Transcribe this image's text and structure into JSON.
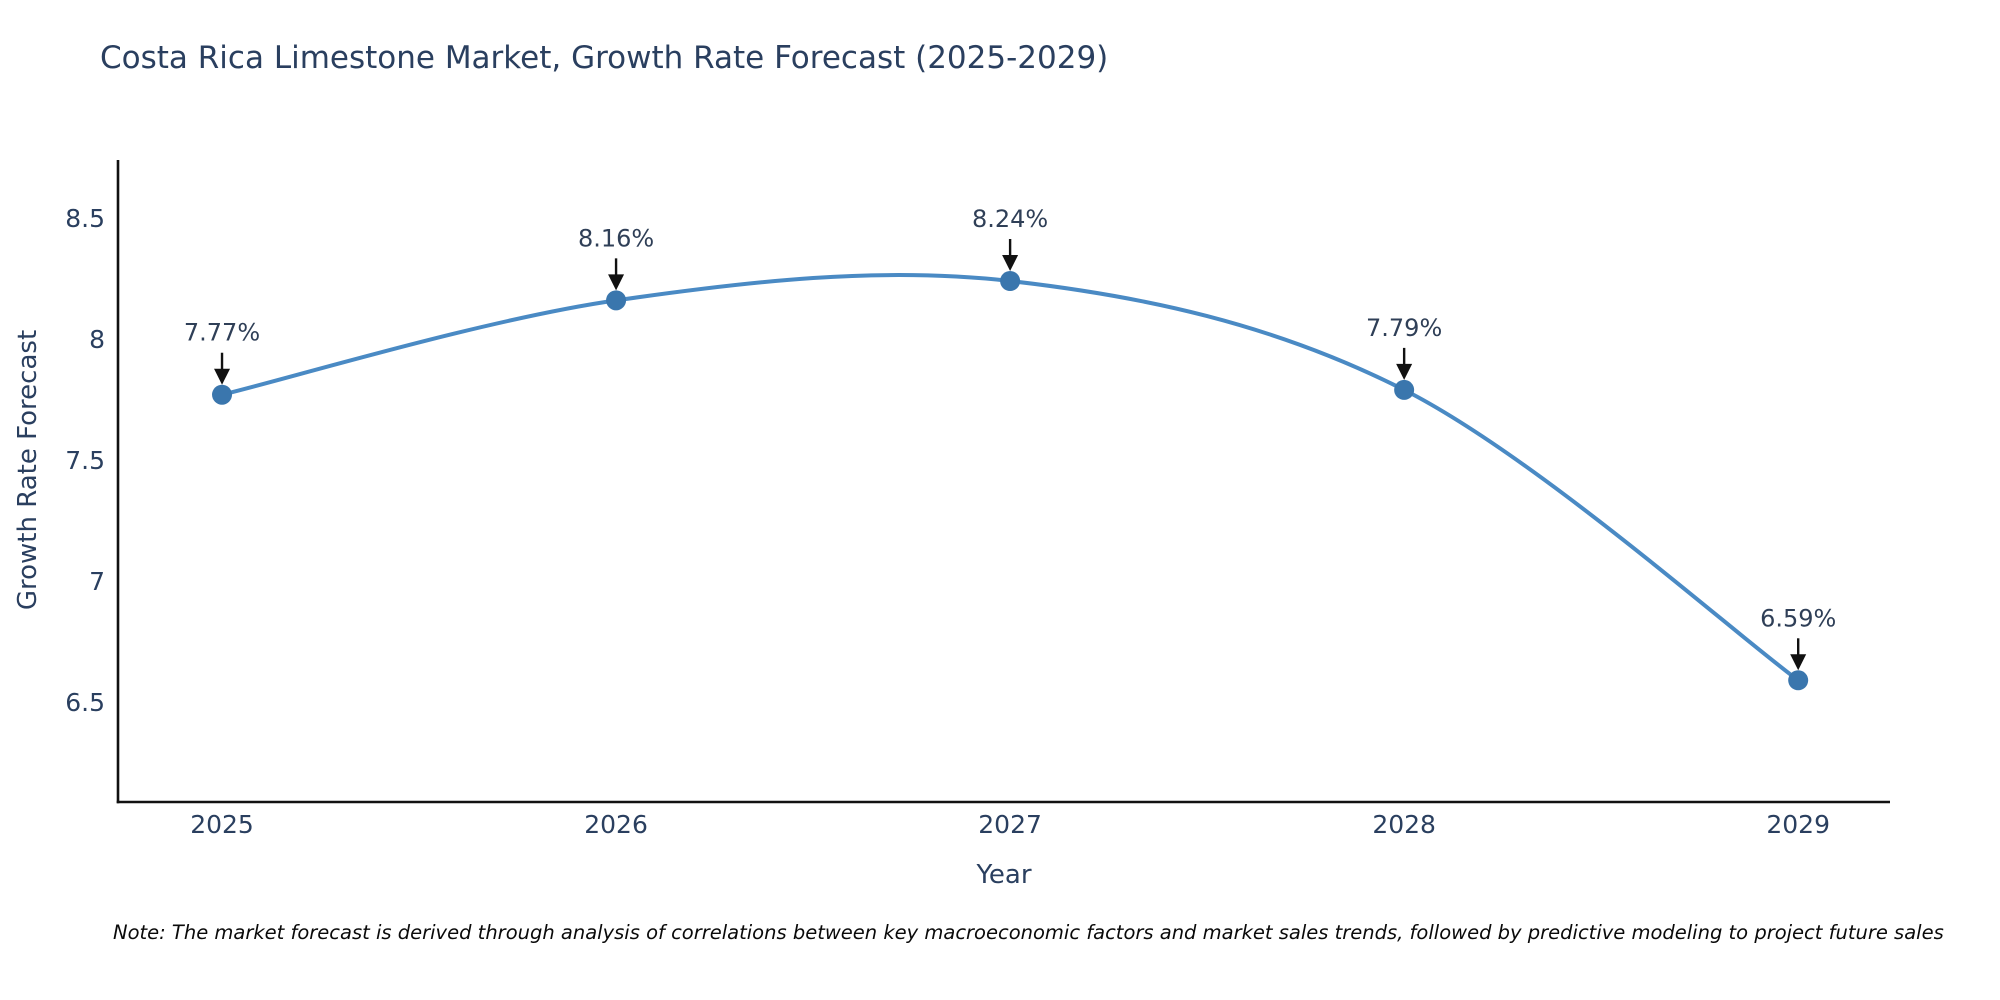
{
  "title": "Costa Rica Limestone Market, Growth Rate Forecast (2025-2029)",
  "note": "Note: The market forecast is derived through analysis of correlations between key macroeconomic factors and market sales trends, followed by predictive modeling to project future sales",
  "chart_data": {
    "type": "line",
    "title": "Costa Rica Limestone Market, Growth Rate Forecast (2025-2029)",
    "xlabel": "Year",
    "ylabel": "Growth Rate Forecast",
    "x": [
      2025,
      2026,
      2027,
      2028,
      2029
    ],
    "y": [
      7.77,
      8.16,
      8.24,
      7.79,
      6.59
    ],
    "point_labels": [
      "7.77%",
      "8.16%",
      "8.24%",
      "7.79%",
      "6.59%"
    ],
    "xticks": [
      "2025",
      "2026",
      "2027",
      "2028",
      "2029"
    ],
    "yticks": [
      6.5,
      7,
      7.5,
      8,
      8.5
    ],
    "ytick_labels": [
      "6.5",
      "7",
      "7.5",
      "8",
      "8.5"
    ],
    "xlim": [
      2024.736,
      2029.233
    ],
    "ylim": [
      6.087,
      8.74
    ],
    "grid": false,
    "legend": "none",
    "smoothing": "spline",
    "colors": {
      "line": "#4a8ac4",
      "marker": "#3a76ad",
      "axis": "#111111",
      "tick_label": "#2a3f5f",
      "annotation_text": "#2f3f57",
      "annotation_arrow": "#111111",
      "title": "#2a3f5f",
      "background": "#ffffff"
    }
  }
}
